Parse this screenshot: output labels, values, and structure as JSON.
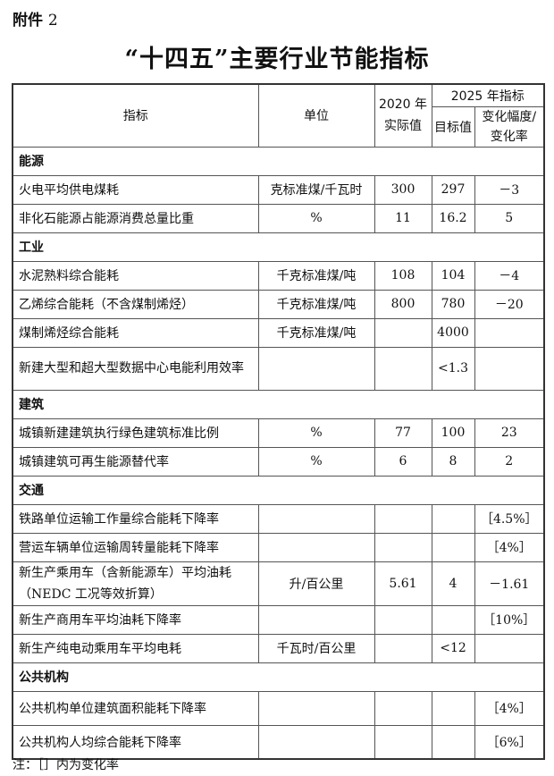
{
  "attachment": {
    "label": "附件",
    "num": "2"
  },
  "title": "“十四五”主要行业节能指标",
  "header": {
    "indicator": "指标",
    "unit": "单位",
    "actual_2020": "2020 年实际值",
    "target_2025": "2025 年指标",
    "target_value": "目标值",
    "change": "变化幅度/变化率"
  },
  "rows": [
    {
      "section": "能源"
    },
    {
      "name": "火电平均供电煤耗",
      "unit": "克标准煤/千瓦时",
      "v2020": "300",
      "target": "297",
      "change": "－3"
    },
    {
      "name": "非化石能源占能源消费总量比重",
      "unit": "%",
      "v2020": "11",
      "target": "16.2",
      "change": "5"
    },
    {
      "section": "工业"
    },
    {
      "name": "水泥熟料综合能耗",
      "unit": "千克标准煤/吨",
      "v2020": "108",
      "target": "104",
      "change": "－4"
    },
    {
      "name": "乙烯综合能耗（不含煤制烯烃）",
      "unit": "千克标准煤/吨",
      "v2020": "800",
      "target": "780",
      "change": "－20"
    },
    {
      "name": "煤制烯烃综合能耗",
      "unit": "千克标准煤/吨",
      "v2020": "",
      "target": "4000",
      "change": ""
    },
    {
      "name": "新建大型和超大型数据中心电能利用效率",
      "unit": "",
      "v2020": "",
      "target": "<1.3",
      "change": "",
      "tall": true
    },
    {
      "section": "建筑"
    },
    {
      "name": "城镇新建建筑执行绿色建筑标准比例",
      "unit": "%",
      "v2020": "77",
      "target": "100",
      "change": "23"
    },
    {
      "name": "城镇建筑可再生能源替代率",
      "unit": "%",
      "v2020": "6",
      "target": "8",
      "change": "2"
    },
    {
      "section": "交通"
    },
    {
      "name": "铁路单位运输工作量综合能耗下降率",
      "unit": "",
      "v2020": "",
      "target": "",
      "change": "［4.5%］"
    },
    {
      "name": "营运车辆单位运输周转量能耗下降率",
      "unit": "",
      "v2020": "",
      "target": "",
      "change": "［4%］"
    },
    {
      "name": "新生产乘用车（含新能源车）平均油耗（NEDC 工况等效折算）",
      "unit": "升/百公里",
      "v2020": "5.61",
      "target": "4",
      "change": "－1.61",
      "tall": true
    },
    {
      "name": "新生产商用车平均油耗下降率",
      "unit": "",
      "v2020": "",
      "target": "",
      "change": "［10%］"
    },
    {
      "name": "新生产纯电动乘用车平均电耗",
      "unit": "千瓦时/百公里",
      "v2020": "",
      "target": "<12",
      "change": ""
    },
    {
      "section": "公共机构"
    },
    {
      "name": "公共机构单位建筑面积能耗下降率",
      "unit": "",
      "v2020": "",
      "target": "",
      "change": "［4%］",
      "mid": true
    },
    {
      "name": "公共机构人均综合能耗下降率",
      "unit": "",
      "v2020": "",
      "target": "",
      "change": "［6%］",
      "mid": true
    }
  ],
  "note": "注：［］内为变化率"
}
